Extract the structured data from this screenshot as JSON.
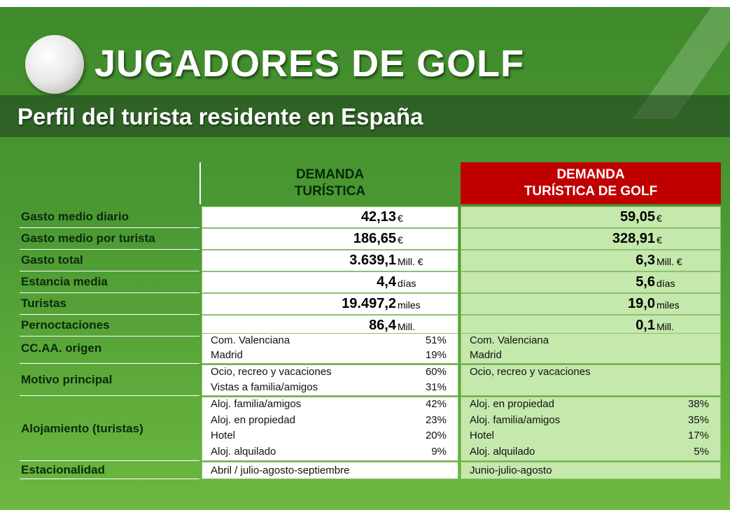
{
  "title": "JUGADORES DE GOLF",
  "subtitle": "Perfil del turista residente en España",
  "table": {
    "headers": [
      [
        "DEMANDA",
        "TURÍSTICA"
      ],
      [
        "DEMANDA",
        "TURÍSTICA DE GOLF"
      ]
    ],
    "metrics": [
      {
        "label": "Gasto medio diario",
        "values": [
          {
            "value": "42,13",
            "unit": "€"
          },
          {
            "value": "59,05",
            "unit": "€"
          }
        ]
      },
      {
        "label": "Gasto medio por turista",
        "values": [
          {
            "value": "186,65",
            "unit": "€"
          },
          {
            "value": "328,91",
            "unit": "€"
          }
        ]
      },
      {
        "label": "Gasto total",
        "values": [
          {
            "value": "3.639,1",
            "unit": "Mill. €"
          },
          {
            "value": "6,3",
            "unit": "Mill. €"
          }
        ]
      },
      {
        "label": "Estancia media",
        "values": [
          {
            "value": "4,4",
            "unit": "días"
          },
          {
            "value": "5,6",
            "unit": "días"
          }
        ]
      },
      {
        "label": "Turistas",
        "values": [
          {
            "value": "19.497,2",
            "unit": "miles"
          },
          {
            "value": "19,0",
            "unit": "miles"
          }
        ]
      },
      {
        "label": "Pernoctaciones",
        "values": [
          {
            "value": "86,4",
            "unit": "Mill."
          },
          {
            "value": "0,1",
            "unit": "Mill."
          }
        ]
      }
    ],
    "distributions": [
      {
        "label": "CC.AA. origen",
        "columns": [
          [
            {
              "item": "Com. Valenciana",
              "share": "51%"
            },
            {
              "item": "Madrid",
              "share": "19%"
            }
          ],
          [
            {
              "item": "Com. Valenciana"
            },
            {
              "item": "Madrid"
            }
          ]
        ]
      },
      {
        "label": "Motivo principal",
        "columns": [
          [
            {
              "item": "Ocio, recreo y vacaciones",
              "share": "60%"
            },
            {
              "item": "Vistas a familia/amigos",
              "share": "31%"
            }
          ],
          [
            {
              "item": "Ocio, recreo y vacaciones"
            }
          ]
        ]
      },
      {
        "label": "Alojamiento (turistas)",
        "columns": [
          [
            {
              "item": "Aloj. familia/amigos",
              "share": "42%"
            },
            {
              "item": "Aloj. en propiedad",
              "share": "23%"
            },
            {
              "item": "Hotel",
              "share": "20%"
            },
            {
              "item": "Aloj. alquilado",
              "share": "9%"
            }
          ],
          [
            {
              "item": "Aloj. en propiedad",
              "share": "38%"
            },
            {
              "item": "Aloj. familia/amigos",
              "share": "35%"
            },
            {
              "item": "Hotel",
              "share": "17%"
            },
            {
              "item": "Aloj. alquilado",
              "share": "5%"
            }
          ]
        ]
      }
    ],
    "seasonality": {
      "label": "Estacionalidad",
      "values": [
        "Abril / julio-agosto-septiembre",
        "Junio-julio-agosto"
      ]
    }
  }
}
